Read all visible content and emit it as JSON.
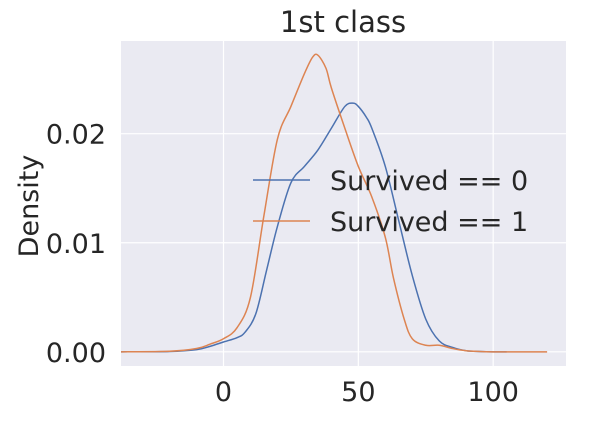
{
  "chart_data": {
    "type": "line",
    "title": "1st class",
    "xlabel": "",
    "ylabel": "Density",
    "xlim": [
      -38,
      127
    ],
    "ylim": [
      -0.0013,
      0.0285
    ],
    "xticks": [
      0,
      50,
      100
    ],
    "yticks": [
      0.0,
      0.01,
      0.02
    ],
    "xtick_labels": [
      "0",
      "50",
      "100"
    ],
    "ytick_labels": [
      "0.00",
      "0.01",
      "0.02"
    ],
    "grid": true,
    "legend_position": "center-right",
    "series": [
      {
        "name": "Survived == 0",
        "color": "#4c72b0",
        "x": [
          -38,
          -20,
          -10,
          -5,
          0,
          5,
          8,
          12,
          16,
          20,
          25,
          30,
          35,
          40,
          45,
          48,
          50,
          53,
          55,
          60,
          65,
          70,
          75,
          80,
          85,
          90,
          95,
          100,
          105
        ],
        "y": [
          0.0,
          3e-05,
          0.0002,
          0.0005,
          0.0009,
          0.0013,
          0.0018,
          0.0035,
          0.0075,
          0.0115,
          0.0155,
          0.017,
          0.0185,
          0.0205,
          0.0225,
          0.0228,
          0.0225,
          0.0215,
          0.0205,
          0.017,
          0.012,
          0.007,
          0.003,
          0.001,
          0.0004,
          0.0001,
          3e-05,
          0.0,
          0.0
        ]
      },
      {
        "name": "Survived == 1",
        "color": "#dd8452",
        "x": [
          -38,
          -20,
          -10,
          -5,
          0,
          5,
          10,
          15,
          20,
          25,
          30,
          33,
          35,
          38,
          40,
          45,
          50,
          55,
          60,
          63,
          67,
          70,
          75,
          80,
          85,
          90,
          95,
          100,
          110,
          120
        ],
        "y": [
          0.0,
          5e-05,
          0.0003,
          0.0007,
          0.0012,
          0.0022,
          0.005,
          0.0125,
          0.0195,
          0.0225,
          0.0255,
          0.027,
          0.0272,
          0.026,
          0.0242,
          0.0205,
          0.017,
          0.0142,
          0.0105,
          0.0068,
          0.003,
          0.0012,
          0.0006,
          0.0006,
          0.0003,
          0.0001,
          3e-05,
          0.0,
          0.0,
          0.0
        ]
      }
    ]
  }
}
